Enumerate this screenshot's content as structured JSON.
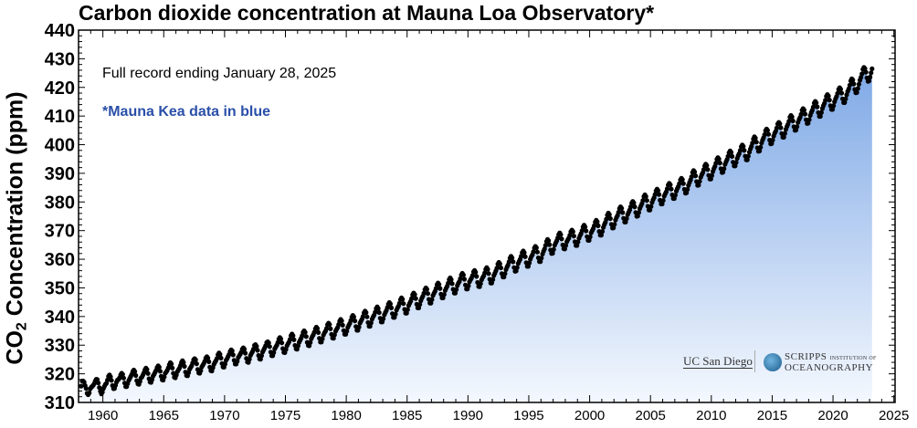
{
  "chart_data": {
    "type": "scatter",
    "title": "Carbon dioxide concentration at Mauna Loa Observatory*",
    "ylabel_main": "CO",
    "ylabel_sub": "2",
    "ylabel_rest": " Concentration (ppm)",
    "annotations": {
      "record": "Full record ending January 28, 2025",
      "mauna_kea": "*Mauna Kea data in blue"
    },
    "logos": {
      "ucsd": "UC San Diego",
      "scripps_1": "SCRIPPS",
      "scripps_small": "INSTITUTION OF",
      "scripps_2": "OCEANOGRAPHY"
    },
    "xlim": [
      1958,
      2025.1
    ],
    "ylim": [
      310,
      440
    ],
    "xticks": [
      1960,
      1965,
      1970,
      1975,
      1980,
      1985,
      1990,
      1995,
      2000,
      2005,
      2010,
      2015,
      2020,
      2025
    ],
    "yticks": [
      310,
      320,
      330,
      340,
      350,
      360,
      370,
      380,
      390,
      400,
      410,
      420,
      430,
      440
    ],
    "grid": false,
    "series": [
      {
        "marker_color": "#000000",
        "fill_top_color": "#7fa9e6",
        "fill_bottom_color": "#f4f8fe",
        "start_date": "1958-03",
        "interval": "monthly",
        "values": [
          315.7,
          317.5,
          317.5,
          317.1,
          315.9,
          314.9,
          313.2,
          312.7,
          313.3,
          314.7,
          315.3,
          315.6,
          316.0,
          316.6,
          317.5,
          318.1,
          318.0,
          316.8,
          315.2,
          313.9,
          313.0,
          313.6,
          314.8,
          315.6,
          316.3,
          316.7,
          317.8,
          319.1,
          319.6,
          319.0,
          317.7,
          315.9,
          314.8,
          314.9,
          316.0,
          317.1,
          317.8,
          318.1,
          318.6,
          319.6,
          320.2,
          319.8,
          318.5,
          316.8,
          315.5,
          315.5,
          316.6,
          317.7,
          318.4,
          319.1,
          319.8,
          320.8,
          321.3,
          320.8,
          319.4,
          317.6,
          316.5,
          316.3,
          317.3,
          318.5,
          318.9,
          319.6,
          320.4,
          321.4,
          322.0,
          321.5,
          320.1,
          318.3,
          317.1,
          317.0,
          318.0,
          319.2,
          319.8,
          320.5,
          321.2,
          322.2,
          322.8,
          322.3,
          320.9,
          319.1,
          317.9,
          317.8,
          318.9,
          320.2,
          320.6,
          321.2,
          322.1,
          323.2,
          323.9,
          323.4,
          322.0,
          320.2,
          318.8,
          318.6,
          319.6,
          320.8,
          321.4,
          322.0,
          322.9,
          324.0,
          324.6,
          324.0,
          322.6,
          320.6,
          319.4,
          319.3,
          320.4,
          321.6,
          322.2,
          322.8,
          323.8,
          324.9,
          325.3,
          324.9,
          323.5,
          321.5,
          320.3,
          320.2,
          321.1,
          322.4,
          323.0,
          323.6,
          324.4,
          325.5,
          326.0,
          325.5,
          324.2,
          322.3,
          321.1,
          321.0,
          322.1,
          323.3,
          324.0,
          324.6,
          325.4,
          326.7,
          327.3,
          326.8,
          325.5,
          323.6,
          322.4,
          322.3,
          323.4,
          324.7,
          325.3,
          326.1,
          326.8,
          327.8,
          328.4,
          328.0,
          326.6,
          324.7,
          323.4,
          323.4,
          324.4,
          325.7,
          326.3,
          326.9,
          327.6,
          328.6,
          329.1,
          328.6,
          327.2,
          325.4,
          324.1,
          324.0,
          325.1,
          326.4,
          327.1,
          327.7,
          328.6,
          329.9,
          330.2,
          329.6,
          328.2,
          326.4,
          325.2,
          325.1,
          326.3,
          327.6,
          328.3,
          329.0,
          329.8,
          330.9,
          331.2,
          330.8,
          329.5,
          327.6,
          326.3,
          326.3,
          327.4,
          328.7,
          329.4,
          330.0,
          330.9,
          332.1,
          332.7,
          332.2,
          330.8,
          328.8,
          327.5,
          327.4,
          328.5,
          329.8,
          330.5,
          331.1,
          332.0,
          333.3,
          333.9,
          333.3,
          331.9,
          329.9,
          328.7,
          328.6,
          329.8,
          331.0,
          331.7,
          332.4,
          333.3,
          334.5,
          335.0,
          334.5,
          333.0,
          331.0,
          329.9,
          329.8,
          330.9,
          332.2,
          333.0,
          333.6,
          334.5,
          335.7,
          336.3,
          335.8,
          334.4,
          332.4,
          331.1,
          331.1,
          332.2,
          333.5,
          334.3,
          334.9,
          335.8,
          337.1,
          337.7,
          337.2,
          335.7,
          333.8,
          332.5,
          332.4,
          333.6,
          334.9,
          335.6,
          336.2,
          337.2,
          338.4,
          339.0,
          338.5,
          337.0,
          335.1,
          333.8,
          333.8,
          334.9,
          336.2,
          337.0,
          337.6,
          338.6,
          339.8,
          340.4,
          339.9,
          338.5,
          336.5,
          335.2,
          335.2,
          336.3,
          337.7,
          338.4,
          339.1,
          340.0,
          341.3,
          341.9,
          341.4,
          339.9,
          337.9,
          336.6,
          336.6,
          337.8,
          339.1,
          339.9,
          340.5,
          341.5,
          342.8,
          343.4,
          342.8,
          341.4,
          339.4,
          338.1,
          338.1,
          339.2,
          340.6,
          341.4,
          342.1,
          343.1,
          344.3,
          344.9,
          344.4,
          343.0,
          341.0,
          339.7,
          339.7,
          340.8,
          342.2,
          343.0,
          343.6,
          344.6,
          345.9,
          346.5,
          346.0,
          344.5,
          342.5,
          341.2,
          341.2,
          342.4,
          343.8,
          344.6,
          345.3,
          346.3,
          347.6,
          348.2,
          347.7,
          346.3,
          344.3,
          343.0,
          343.0,
          344.2,
          345.5,
          346.4,
          347.1,
          348.1,
          349.4,
          350.0,
          349.5,
          348.0,
          346.0,
          344.7,
          344.7,
          345.9,
          347.3,
          348.1,
          348.8,
          349.8,
          351.1,
          351.7,
          351.2,
          349.8,
          347.8,
          346.5,
          346.5,
          347.7,
          349.1,
          349.9,
          350.6,
          351.6,
          352.9,
          353.5,
          352.9,
          351.5,
          349.5,
          348.2,
          348.2,
          349.4,
          350.8,
          351.6,
          352.2,
          353.2,
          354.5,
          355.1,
          354.5,
          353.0,
          351.0,
          349.6,
          349.6,
          350.7,
          352.1,
          352.8,
          353.4,
          354.3,
          355.6,
          356.1,
          355.5,
          354.0,
          351.9,
          350.5,
          350.4,
          351.5,
          352.8,
          353.6,
          354.2,
          355.2,
          356.5,
          357.1,
          356.5,
          355.0,
          353.0,
          351.7,
          351.7,
          352.9,
          354.3,
          355.1,
          355.9,
          356.9,
          358.3,
          358.9,
          358.4,
          357.0,
          355.0,
          353.8,
          353.8,
          355.0,
          356.4,
          357.3,
          358.0,
          359.1,
          360.4,
          361.0,
          360.5,
          359.1,
          357.1,
          355.8,
          355.9,
          357.1,
          358.5,
          359.3,
          360.0,
          361.0,
          362.3,
          362.9,
          362.3,
          360.9,
          358.8,
          357.5,
          357.5,
          358.7,
          360.0,
          360.9,
          361.6,
          362.6,
          363.9,
          364.5,
          364.0,
          362.5,
          360.5,
          359.2,
          359.2,
          360.4,
          361.8,
          362.8,
          363.6,
          364.8,
          366.2,
          366.9,
          366.5,
          365.1,
          363.2,
          362.0,
          362.1,
          363.4,
          364.9,
          365.7,
          366.4,
          367.4,
          368.6,
          369.2,
          368.6,
          367.1,
          365.0,
          363.7,
          363.6,
          364.8,
          366.1,
          366.8,
          367.4,
          368.4,
          369.6,
          370.2,
          369.6,
          368.1,
          366.1,
          364.8,
          364.8,
          366.0,
          367.3,
          368.2,
          368.9,
          370.0,
          371.3,
          371.9,
          371.3,
          369.9,
          367.9,
          366.6,
          366.6,
          367.8,
          369.2,
          370.0,
          370.7,
          371.7,
          373.0,
          373.6,
          373.1,
          371.7,
          369.7,
          368.4,
          368.4,
          369.7,
          371.1,
          372.1,
          372.9,
          374.0,
          375.4,
          376.1,
          375.6,
          374.2,
          372.2,
          370.9,
          371.0,
          372.2,
          373.7,
          374.6,
          375.3,
          376.4,
          377.7,
          378.3,
          377.8,
          376.3,
          374.3,
          373.0,
          373.0,
          374.2,
          375.6,
          376.4,
          377.2,
          378.3,
          379.6,
          380.2,
          379.7,
          378.3,
          376.3,
          375.0,
          375.1,
          376.3,
          377.7,
          378.6,
          379.4,
          380.5,
          381.9,
          382.5,
          381.9,
          380.5,
          378.5,
          377.2,
          377.2,
          378.4,
          379.8,
          380.8,
          381.5,
          382.6,
          383.9,
          384.5,
          384.0,
          382.6,
          380.6,
          379.3,
          379.3,
          380.5,
          382.0,
          382.8,
          383.5,
          384.6,
          385.9,
          386.5,
          386.0,
          384.5,
          382.5,
          381.2,
          381.2,
          382.4,
          383.8,
          384.7,
          385.4,
          386.4,
          387.7,
          388.3,
          387.8,
          386.4,
          384.4,
          383.1,
          383.2,
          384.4,
          385.8,
          386.8,
          387.7,
          388.8,
          390.3,
          391.0,
          390.5,
          389.1,
          387.1,
          385.8,
          385.9,
          387.2,
          388.6,
          389.5,
          390.2,
          391.3,
          392.6,
          393.2,
          392.7,
          391.3,
          389.3,
          388.0,
          388.0,
          389.2,
          390.6,
          391.6,
          392.4,
          393.5,
          394.9,
          395.5,
          395.0,
          393.6,
          391.6,
          390.3,
          390.4,
          391.6,
          393.1,
          394.0,
          394.8,
          395.9,
          397.2,
          397.8,
          397.3,
          395.9,
          393.9,
          392.6,
          392.6,
          393.8,
          395.2,
          396.2,
          396.9,
          398.0,
          399.3,
          399.9,
          399.4,
          398.0,
          396.0,
          394.7,
          394.7,
          396.0,
          397.4,
          398.5,
          399.4,
          400.6,
          402.0,
          402.8,
          402.3,
          400.9,
          398.9,
          397.7,
          397.8,
          399.1,
          400.6,
          401.6,
          402.4,
          403.5,
          404.9,
          405.5,
          405.0,
          403.6,
          401.6,
          400.3,
          400.4,
          401.6,
          403.0,
          404.0,
          404.7,
          405.8,
          407.2,
          407.8,
          407.3,
          405.9,
          403.9,
          402.6,
          402.6,
          403.9,
          405.3,
          406.3,
          407.1,
          408.2,
          409.6,
          410.2,
          409.7,
          408.3,
          406.3,
          405.0,
          405.1,
          406.3,
          407.8,
          408.8,
          409.5,
          410.6,
          412.0,
          412.6,
          412.1,
          410.7,
          408.7,
          407.4,
          407.5,
          408.7,
          410.2,
          411.2,
          412.0,
          413.1,
          414.5,
          415.1,
          414.6,
          413.2,
          411.2,
          409.9,
          409.9,
          411.2,
          412.6,
          413.6,
          414.4,
          415.5,
          416.9,
          417.5,
          417.0,
          415.6,
          413.6,
          412.3,
          412.3,
          413.6,
          415.0,
          416.0,
          416.8,
          417.9,
          419.3,
          419.9,
          419.4,
          418.0,
          416.0,
          414.7,
          414.7,
          416.0,
          417.4,
          418.6,
          419.5,
          420.8,
          422.3,
          423.0,
          422.6,
          421.2,
          419.3,
          418.1,
          418.2,
          419.6,
          421.1,
          422.5,
          423.5,
          424.7,
          426.3,
          427.0,
          426.6,
          425.3,
          423.3,
          422.1,
          422.3,
          423.6,
          425.1,
          426.5
        ]
      }
    ]
  }
}
